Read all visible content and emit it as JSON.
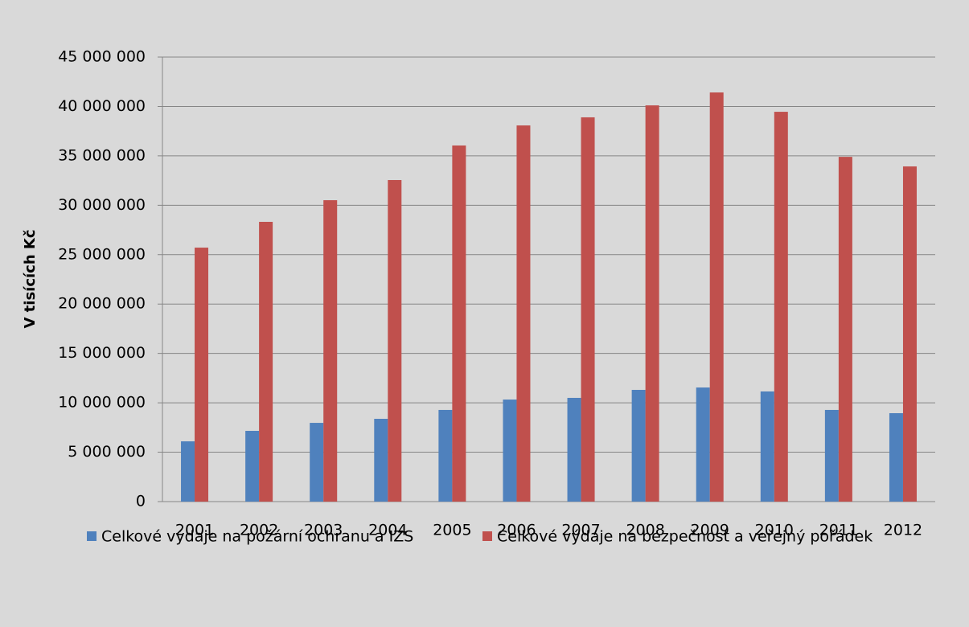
{
  "chart_data": {
    "type": "bar",
    "ylabel": "V tisících Kč",
    "categories": [
      "2001",
      "2002",
      "2003",
      "2004",
      "2005",
      "2006",
      "2007",
      "2008",
      "2009",
      "2010",
      "2011",
      "2012"
    ],
    "series": [
      {
        "name": "Celkové výdaje na požární ochranu a IZS",
        "color": "#4f81bd",
        "values": [
          6100000,
          7160000,
          7970000,
          8380000,
          9280000,
          10330000,
          10500000,
          11310000,
          11550000,
          11150000,
          9280000,
          8950000
        ]
      },
      {
        "name": "Celkové výdaje na bezpečnost a veřejný pořádek",
        "color": "#c0504d",
        "values": [
          25710000,
          28320000,
          30510000,
          32550000,
          36050000,
          38080000,
          38900000,
          40110000,
          41420000,
          39460000,
          34900000,
          33930000
        ]
      }
    ],
    "ylim": [
      0,
      45000000
    ],
    "yticks": [
      {
        "value": 0,
        "label": "0"
      },
      {
        "value": 5000000,
        "label": "5 000 000"
      },
      {
        "value": 10000000,
        "label": "10 000 000"
      },
      {
        "value": 15000000,
        "label": "15 000 000"
      },
      {
        "value": 20000000,
        "label": "20 000 000"
      },
      {
        "value": 25000000,
        "label": "25 000 000"
      },
      {
        "value": 30000000,
        "label": "30 000 000"
      },
      {
        "value": 35000000,
        "label": "35 000 000"
      },
      {
        "value": 40000000,
        "label": "40 000 000"
      },
      {
        "value": 45000000,
        "label": "45 000 000"
      }
    ],
    "grid": true,
    "legend": "bottom"
  }
}
